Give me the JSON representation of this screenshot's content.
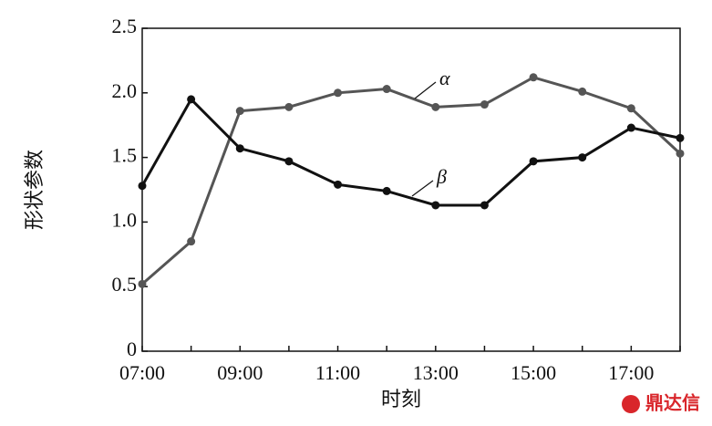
{
  "chart_data": {
    "type": "line",
    "x_label": "时刻",
    "y_label": "形状参数",
    "categories": [
      "07:00",
      null,
      "09:00",
      null,
      "11:00",
      null,
      "13:00",
      null,
      "15:00",
      null,
      "17:00",
      null
    ],
    "series": [
      {
        "name": "α",
        "color": "#555555",
        "values": [
          0.52,
          0.85,
          1.86,
          1.89,
          2.0,
          2.03,
          1.89,
          1.91,
          2.12,
          2.01,
          1.88,
          1.53
        ]
      },
      {
        "name": "β",
        "color": "#111111",
        "values": [
          1.28,
          1.95,
          1.57,
          1.47,
          1.29,
          1.24,
          1.13,
          1.13,
          1.47,
          1.5,
          1.73,
          1.65
        ]
      }
    ],
    "ylim": [
      0,
      2.5
    ],
    "yticks": [
      0,
      0.5,
      {
        "value": 1,
        "label": "1.0"
      },
      1.5,
      {
        "value": 2,
        "label": "2.0"
      },
      2.5
    ]
  },
  "watermark": "鼎达信"
}
